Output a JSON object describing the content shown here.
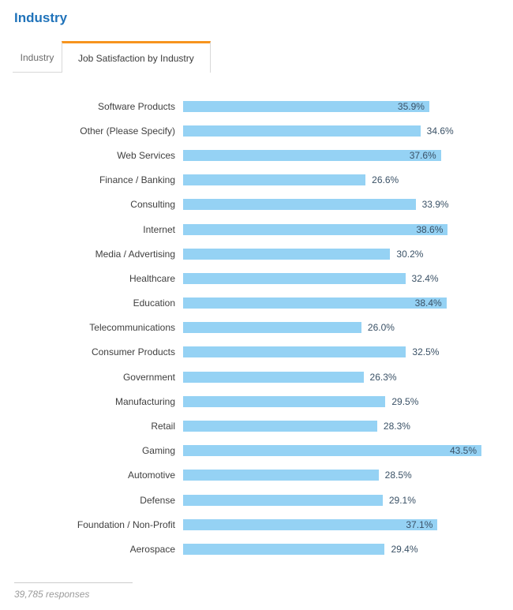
{
  "header": {
    "title": "Industry"
  },
  "tabs": [
    {
      "label": "Industry",
      "active": false
    },
    {
      "label": "Job Satisfaction by Industry",
      "active": true
    }
  ],
  "chart_data": {
    "type": "bar",
    "orientation": "horizontal",
    "title": "Job Satisfaction by Industry",
    "categories": [
      "Software Products",
      "Other (Please Specify)",
      "Web Services",
      "Finance / Banking",
      "Consulting",
      "Internet",
      "Media / Advertising",
      "Healthcare",
      "Education",
      "Telecommunications",
      "Consumer Products",
      "Government",
      "Manufacturing",
      "Retail",
      "Gaming",
      "Automotive",
      "Defense",
      "Foundation / Non-Profit",
      "Aerospace"
    ],
    "values": [
      35.9,
      34.6,
      37.6,
      26.6,
      33.9,
      38.6,
      30.2,
      32.4,
      38.4,
      26.0,
      32.5,
      26.3,
      29.5,
      28.3,
      43.5,
      28.5,
      29.1,
      37.1,
      29.4
    ],
    "value_suffix": "%",
    "xlim": [
      0,
      43.5
    ],
    "grid": false,
    "legend": null,
    "bar_color": "#95d2f4",
    "value_label_color": "#3a5166"
  },
  "footer": {
    "responses": "39,785 responses"
  },
  "colors": {
    "title_blue": "#2073ba",
    "tab_active_accent": "#f7941e",
    "tab_border": "#d8d8d8"
  }
}
